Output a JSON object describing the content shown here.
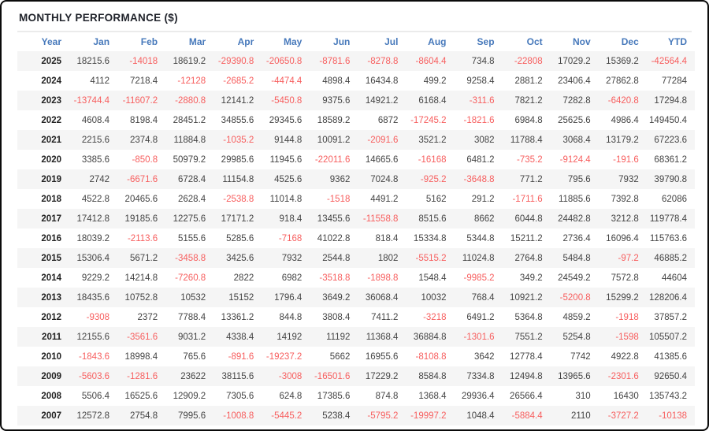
{
  "title": "MONTHLY PERFORMANCE ($)",
  "colors": {
    "header_text": "#4779bb",
    "positive_value": "#444444",
    "negative_value": "#f75e5e",
    "row_stripe": "#f5f5f5",
    "title_text": "#21242c",
    "frame_border": "#0a0a0a"
  },
  "chart_data": {
    "type": "table",
    "title": "MONTHLY PERFORMANCE ($)",
    "columns": [
      "Year",
      "Jan",
      "Feb",
      "Mar",
      "Apr",
      "May",
      "Jun",
      "Jul",
      "Aug",
      "Sep",
      "Oct",
      "Nov",
      "Dec",
      "YTD"
    ],
    "rows": [
      {
        "year": "2025",
        "values": [
          18215.6,
          -14018,
          18619.2,
          -29390.8,
          -20650.8,
          -8781.6,
          -8278.8,
          -8604.4,
          734.8,
          -22808,
          17029.2,
          15369.2,
          -42564.4
        ]
      },
      {
        "year": "2024",
        "values": [
          4112,
          7218.4,
          -12128,
          -2685.2,
          -4474.4,
          4898.4,
          16434.8,
          499.2,
          9258.4,
          2881.2,
          23406.4,
          27862.8,
          77284
        ]
      },
      {
        "year": "2023",
        "values": [
          -13744.4,
          -11607.2,
          -2880.8,
          12141.2,
          -5450.8,
          9375.6,
          14921.2,
          6168.4,
          -311.6,
          7821.2,
          7282.8,
          -6420.8,
          17294.8
        ]
      },
      {
        "year": "2022",
        "values": [
          4608.4,
          8198.4,
          28451.2,
          34855.6,
          29345.6,
          18589.2,
          6872,
          -17245.2,
          -1821.6,
          6984.8,
          25625.6,
          4986.4,
          149450.4
        ]
      },
      {
        "year": "2021",
        "values": [
          2215.6,
          2374.8,
          11884.8,
          -1035.2,
          9144.8,
          10091.2,
          -2091.6,
          3521.2,
          3082,
          11788.4,
          3068.4,
          13179.2,
          67223.6
        ]
      },
      {
        "year": "2020",
        "values": [
          3385.6,
          -850.8,
          50979.2,
          29985.6,
          11945.6,
          -22011.6,
          14665.6,
          -16168,
          6481.2,
          -735.2,
          -9124.4,
          -191.6,
          68361.2
        ]
      },
      {
        "year": "2019",
        "values": [
          2742,
          -6671.6,
          6728.4,
          11154.8,
          4525.6,
          9362,
          7024.8,
          -925.2,
          -3648.8,
          771.2,
          795.6,
          7932,
          39790.8
        ]
      },
      {
        "year": "2018",
        "values": [
          4522.8,
          20465.6,
          2628.4,
          -2538.8,
          11014.8,
          -1518,
          4491.2,
          5162,
          291.2,
          -1711.6,
          11885.6,
          7392.8,
          62086
        ]
      },
      {
        "year": "2017",
        "values": [
          17412.8,
          19185.6,
          12275.6,
          17171.2,
          918.4,
          13455.6,
          -11558.8,
          8515.6,
          8662,
          6044.8,
          24482.8,
          3212.8,
          119778.4
        ]
      },
      {
        "year": "2016",
        "values": [
          18039.2,
          -2113.6,
          5155.6,
          5285.6,
          -7168,
          41022.8,
          818.4,
          15334.8,
          5344.8,
          15211.2,
          2736.4,
          16096.4,
          115763.6
        ]
      },
      {
        "year": "2015",
        "values": [
          15306.4,
          5671.2,
          -3458.8,
          3425.6,
          7932,
          2544.8,
          1802,
          -5515.2,
          11024.8,
          2764.8,
          5484.8,
          -97.2,
          46885.2
        ]
      },
      {
        "year": "2014",
        "values": [
          9229.2,
          14214.8,
          -7260.8,
          2822,
          6982,
          -3518.8,
          -1898.8,
          1548.4,
          -9985.2,
          349.2,
          24549.2,
          7572.8,
          44604
        ]
      },
      {
        "year": "2013",
        "values": [
          18435.6,
          10752.8,
          10532,
          15152,
          1796.4,
          3649.2,
          36068.4,
          10032,
          768.4,
          10921.2,
          -5200.8,
          15299.2,
          128206.4
        ]
      },
      {
        "year": "2012",
        "values": [
          -9308,
          2372,
          7788.4,
          13361.2,
          844.8,
          3808.4,
          7411.2,
          -3218,
          6491.2,
          5364.8,
          4859.2,
          -1918,
          37857.2
        ]
      },
      {
        "year": "2011",
        "values": [
          12155.6,
          -3561.6,
          9031.2,
          4338.4,
          14192,
          11192,
          11368.4,
          36884.8,
          -1301.6,
          7551.2,
          5254.8,
          -1598,
          105507.2
        ]
      },
      {
        "year": "2010",
        "values": [
          -1843.6,
          18998.4,
          765.6,
          -891.6,
          -19237.2,
          5662,
          16955.6,
          -8108.8,
          3642,
          12778.4,
          7742,
          4922.8,
          41385.6
        ]
      },
      {
        "year": "2009",
        "values": [
          -5603.6,
          -1281.6,
          23622,
          38115.6,
          -3008,
          -16501.6,
          17229.2,
          8584.8,
          7334.8,
          12494.8,
          13965.6,
          -2301.6,
          92650.4
        ]
      },
      {
        "year": "2008",
        "values": [
          5506.4,
          16525.6,
          12909.2,
          7305.6,
          624.8,
          17385.6,
          874.8,
          1368.4,
          29936.4,
          26566.4,
          310,
          16430,
          135743.2
        ]
      },
      {
        "year": "2007",
        "values": [
          12572.8,
          2754.8,
          7995.6,
          -1008.8,
          -5445.2,
          5238.4,
          -5795.2,
          -19997.2,
          1048.4,
          -5884.4,
          2110,
          -3727.2,
          -10138
        ]
      }
    ]
  }
}
